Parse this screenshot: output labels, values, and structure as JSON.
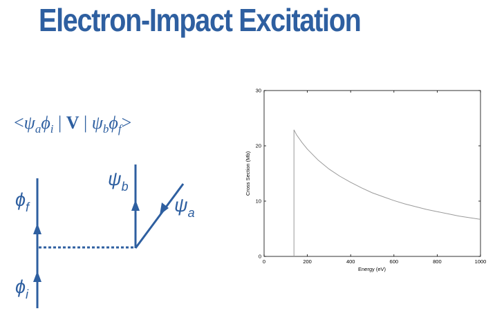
{
  "colors": {
    "accent": "#2e5fa0",
    "chart_line": "#9a9a9a",
    "axis": "#000000"
  },
  "title": "Electron-Impact Excitation",
  "matrix_element": {
    "open": "<",
    "psi_a": "ψ",
    "psi_a_sub": "a",
    "phi_i": "ϕ",
    "phi_i_sub": "i",
    "bar1": "|",
    "operator": "V",
    "bar2": "|",
    "psi_b": "ψ",
    "psi_b_sub": "b",
    "phi_f": "ϕ",
    "phi_f_sub": "f",
    "close": ">"
  },
  "diagram": {
    "phi_f": {
      "sym": "ϕ",
      "sub": "f"
    },
    "phi_i": {
      "sym": "ϕ",
      "sub": "i"
    },
    "psi_b": {
      "sym": "ψ",
      "sub": "b"
    },
    "psi_a": {
      "sym": "ψ",
      "sub": "a"
    }
  },
  "chart_data": {
    "type": "line",
    "xlabel": "Energy (eV)",
    "ylabel": "Cross Section (Mb)",
    "xlim": [
      0,
      1000
    ],
    "ylim": [
      0,
      30
    ],
    "xticks": [
      0,
      200,
      400,
      600,
      800,
      1000
    ],
    "yticks": [
      0,
      10,
      20,
      30
    ],
    "grid": false,
    "series": [
      {
        "x": [
          138,
          138,
          150,
          175,
          200,
          250,
          300,
          350,
          400,
          450,
          500,
          550,
          600,
          650,
          700,
          750,
          800,
          850,
          900,
          950,
          1000
        ],
        "y": [
          0,
          22.9,
          22.0,
          20.6,
          19.4,
          17.4,
          15.8,
          14.5,
          13.4,
          12.4,
          11.5,
          10.8,
          10.1,
          9.5,
          9.0,
          8.5,
          8.1,
          7.7,
          7.3,
          7.0,
          6.7
        ]
      }
    ]
  }
}
